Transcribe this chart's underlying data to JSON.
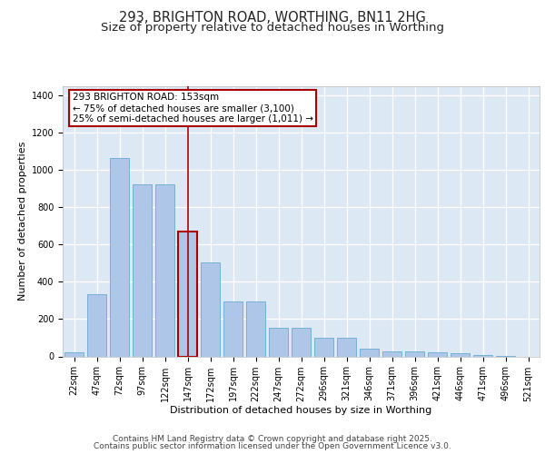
{
  "title": "293, BRIGHTON ROAD, WORTHING, BN11 2HG",
  "subtitle": "Size of property relative to detached houses in Worthing",
  "xlabel": "Distribution of detached houses by size in Worthing",
  "ylabel": "Number of detached properties",
  "categories": [
    "22sqm",
    "47sqm",
    "72sqm",
    "97sqm",
    "122sqm",
    "147sqm",
    "172sqm",
    "197sqm",
    "222sqm",
    "247sqm",
    "272sqm",
    "296sqm",
    "321sqm",
    "346sqm",
    "371sqm",
    "396sqm",
    "421sqm",
    "446sqm",
    "471sqm",
    "496sqm",
    "521sqm"
  ],
  "values": [
    20,
    335,
    1065,
    925,
    925,
    670,
    505,
    295,
    295,
    155,
    155,
    100,
    100,
    40,
    25,
    25,
    20,
    15,
    8,
    2,
    0
  ],
  "bar_color": "#aec6e8",
  "bar_edge_color": "#6aaad4",
  "highlight_bar_index": 5,
  "highlight_color": "#aa0000",
  "annotation_text": "293 BRIGHTON ROAD: 153sqm\n← 75% of detached houses are smaller (3,100)\n25% of semi-detached houses are larger (1,011) →",
  "ylim": [
    0,
    1450
  ],
  "yticks": [
    0,
    200,
    400,
    600,
    800,
    1000,
    1200,
    1400
  ],
  "footer_line1": "Contains HM Land Registry data © Crown copyright and database right 2025.",
  "footer_line2": "Contains public sector information licensed under the Open Government Licence v3.0.",
  "bg_color": "#dde8f5",
  "grid_color": "#ffffff",
  "title_fontsize": 10.5,
  "subtitle_fontsize": 9.5,
  "axis_label_fontsize": 8,
  "tick_fontsize": 7,
  "footer_fontsize": 6.5,
  "annotation_fontsize": 7.5
}
